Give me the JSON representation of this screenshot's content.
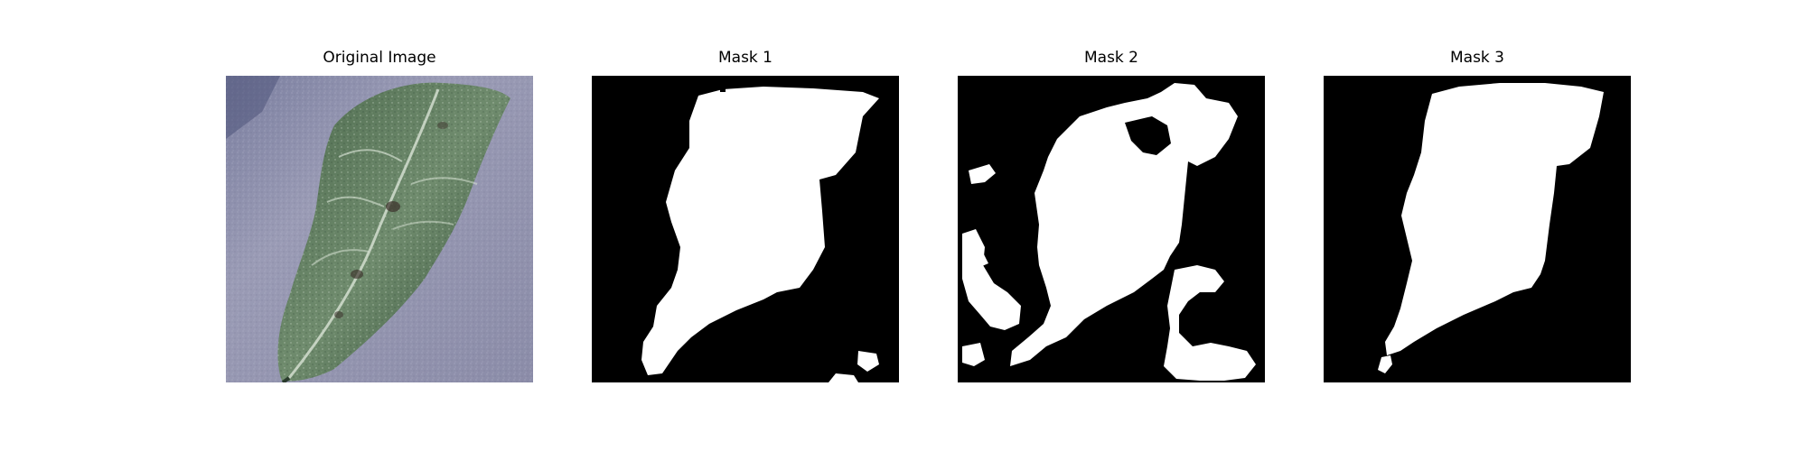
{
  "panels": [
    {
      "title": "Original Image"
    },
    {
      "title": "Mask 1"
    },
    {
      "title": "Mask 2"
    },
    {
      "title": "Mask 3"
    }
  ],
  "colors": {
    "mask_foreground": "#ffffff",
    "mask_background": "#000000",
    "leaf_dark": "#2f4a35",
    "leaf_mid": "#5f7f63",
    "background_gray": "#8d8fa8"
  }
}
